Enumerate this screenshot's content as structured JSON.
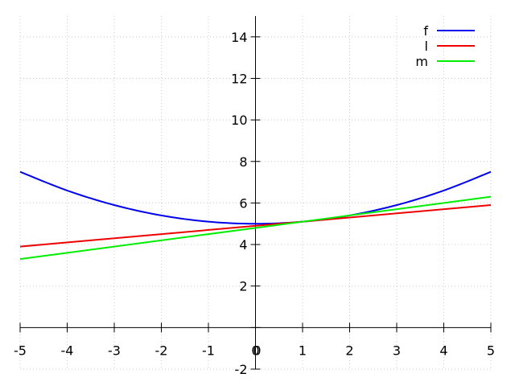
{
  "chart_data": {
    "type": "line",
    "title": "",
    "xlabel": "",
    "ylabel": "",
    "xlim": [
      -5,
      5
    ],
    "ylim": [
      -2,
      15
    ],
    "x_ticks": [
      "-5",
      "-4",
      "-3",
      "-2",
      "-1",
      "0",
      "1",
      "2",
      "3",
      "4",
      "5"
    ],
    "y_ticks": [
      "-2",
      "0",
      "2",
      "4",
      "6",
      "8",
      "10",
      "12",
      "14"
    ],
    "grid": true,
    "legend_position": "top-right",
    "series": [
      {
        "name": "f",
        "color": "#0000ee",
        "x": [
          -5,
          -4,
          -3,
          -2,
          -1,
          0,
          1,
          2,
          3,
          4,
          5
        ],
        "values": [
          7.5,
          6.6,
          5.9,
          5.4,
          5.1,
          5.0,
          5.1,
          5.4,
          5.9,
          6.6,
          7.5
        ]
      },
      {
        "name": "l",
        "color": "#ee0000",
        "x": [
          -5,
          5
        ],
        "values": [
          3.9,
          5.9
        ]
      },
      {
        "name": "m",
        "color": "#00ee00",
        "x": [
          -5,
          5
        ],
        "values": [
          3.3,
          6.3
        ]
      }
    ]
  }
}
